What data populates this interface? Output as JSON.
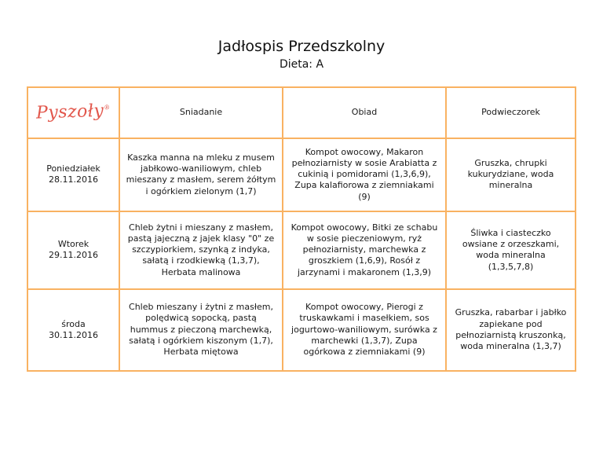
{
  "page": {
    "title": "Jadłospis Przedszkolny",
    "subtitle": "Dieta: A"
  },
  "brand": {
    "logo_text": "Pyszoły",
    "logo_mark": "®",
    "logo_color": "#E2574C"
  },
  "table": {
    "border_color": "#F9B262",
    "headers": {
      "breakfast": "Sniadanie",
      "lunch": "Obiad",
      "snack": "Podwieczorek"
    },
    "rows": [
      {
        "day": "Poniedziałek",
        "date": "28.11.2016",
        "breakfast": "Kaszka manna na mleku z musem jabłkowo-waniliowym, chleb mieszany z masłem, serem żółtym i ogórkiem zielonym  (1,7)",
        "lunch": "Kompot owocowy, Makaron pełnoziarnisty w sosie Arabiatta z cukinią i pomidorami (1,3,6,9), Zupa kalafiorowa z ziemniakami (9)",
        "snack": "Gruszka, chrupki kukurydziane, woda mineralna"
      },
      {
        "day": "Wtorek",
        "date": "29.11.2016",
        "breakfast": "Chleb żytni i mieszany z masłem, pastą jajeczną z jajek klasy \"0\" ze szczypiorkiem, szynką z indyka, sałatą i rzodkiewką (1,3,7), Herbata malinowa",
        "lunch": "Kompot owocowy, Bitki ze schabu w sosie pieczeniowym, ryż pełnoziarnisty, marchewka z groszkiem (1,6,9), Rosół z jarzynami i makaronem (1,3,9)",
        "snack": "Śliwka i ciasteczko owsiane z orzeszkami, woda mineralna (1,3,5,7,8)"
      },
      {
        "day": "środa",
        "date": "30.11.2016",
        "breakfast": "Chleb mieszany i żytni z masłem, polędwicą sopocką, pastą hummus z pieczoną marchewką, sałatą i ogórkiem kiszonym (1,7), Herbata miętowa",
        "lunch": "Kompot owocowy, Pierogi z truskawkami i masełkiem, sos jogurtowo-waniliowym, surówka z marchewki (1,3,7), Zupa ogórkowa z ziemniakami (9)",
        "snack": "Gruszka, rabarbar i jabłko zapiekane pod pełnoziarnistą kruszonką, woda mineralna (1,3,7)"
      }
    ]
  }
}
